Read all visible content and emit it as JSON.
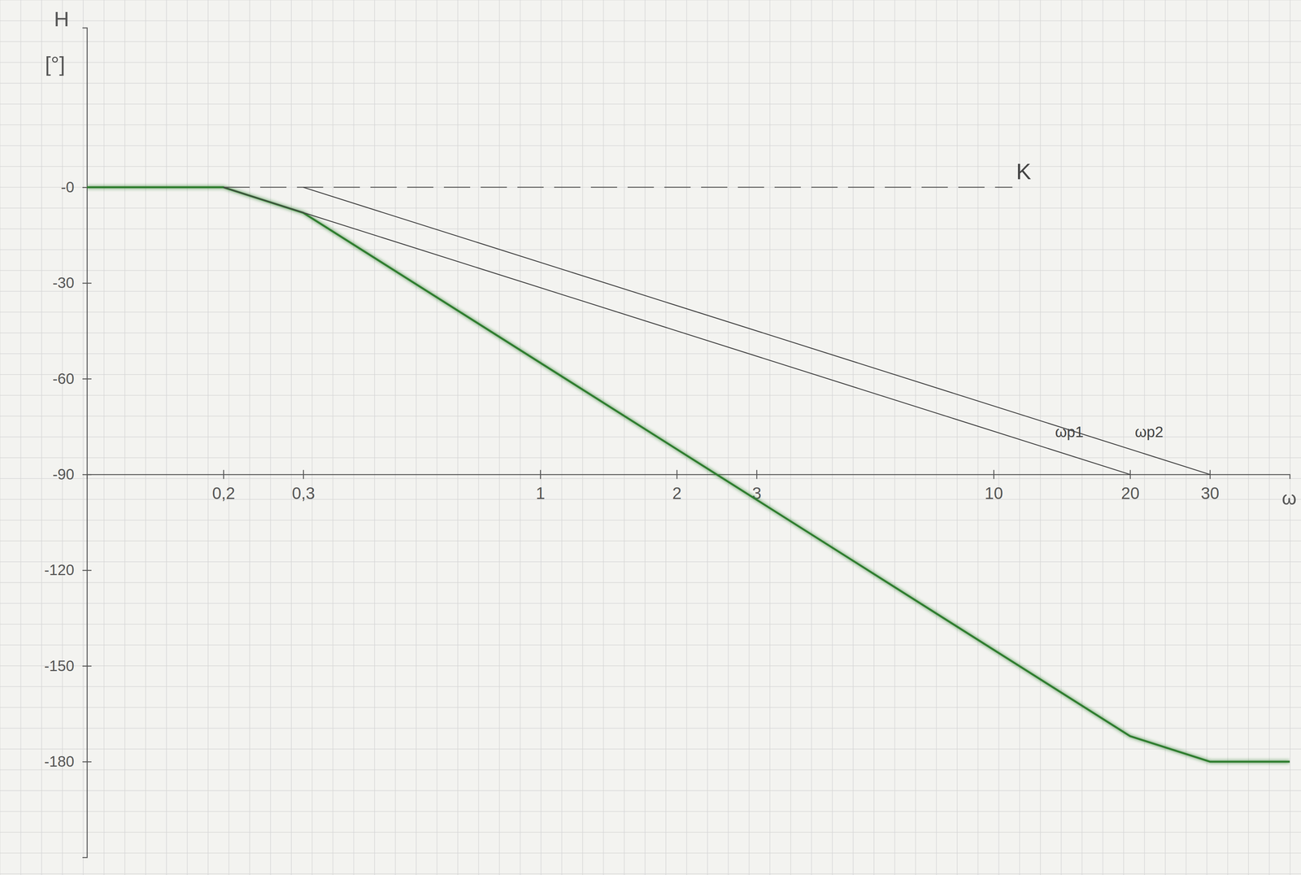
{
  "chart_data": {
    "type": "line",
    "xlabel": "ω",
    "ylabel": "H",
    "yunit": "[°]",
    "log": "x",
    "xlim": [
      0.1,
      45
    ],
    "ylim": [
      -210,
      50
    ],
    "xticks": [
      {
        "value": 0.2,
        "label": "0,2"
      },
      {
        "value": 0.3,
        "label": "0,3"
      },
      1,
      2,
      3,
      10,
      20,
      30
    ],
    "yticks": [
      {
        "value": 0,
        "label": "-0"
      },
      -30,
      -60,
      -90,
      -120,
      -150,
      -180
    ],
    "series": [
      {
        "color": "#2f7d2f",
        "line_style": "solid",
        "x": [
          0.1,
          0.2,
          0.3,
          20,
          30,
          45
        ],
        "values": [
          0,
          0,
          -8,
          -172,
          -180,
          -180
        ]
      },
      {
        "name": "K",
        "color": "#555555",
        "line_style": "dashed",
        "x": [
          0.2,
          11
        ],
        "values": [
          0,
          0
        ]
      },
      {
        "name": "ωp1",
        "color": "#444444",
        "line_style": "solid",
        "x": [
          0.2,
          20
        ],
        "values": [
          0,
          -90
        ]
      },
      {
        "name": "ωp2",
        "color": "#444444",
        "line_style": "solid",
        "x": [
          0.3,
          30
        ],
        "values": [
          0,
          -90
        ]
      }
    ]
  }
}
